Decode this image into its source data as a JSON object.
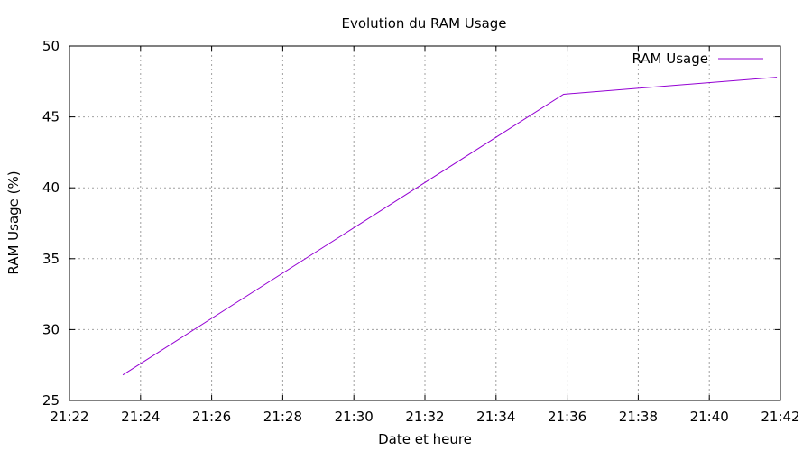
{
  "chart_data": {
    "type": "line",
    "title": "Evolution du RAM Usage",
    "xlabel": "Date et heure",
    "ylabel": "RAM Usage (%)",
    "x_ticks": [
      "21:22",
      "21:24",
      "21:26",
      "21:28",
      "21:30",
      "21:32",
      "21:34",
      "21:36",
      "21:38",
      "21:40",
      "21:42"
    ],
    "y_ticks": [
      "25",
      "30",
      "35",
      "40",
      "45",
      "50"
    ],
    "xlim": [
      "21:22",
      "21:42"
    ],
    "ylim": [
      25,
      50
    ],
    "grid": true,
    "legend_position": "top-right",
    "series": [
      {
        "name": "RAM Usage",
        "color": "#9400d3",
        "x": [
          "21:23:30",
          "21:35:54",
          "21:41:54"
        ],
        "y": [
          26.8,
          46.6,
          47.8
        ]
      }
    ]
  }
}
